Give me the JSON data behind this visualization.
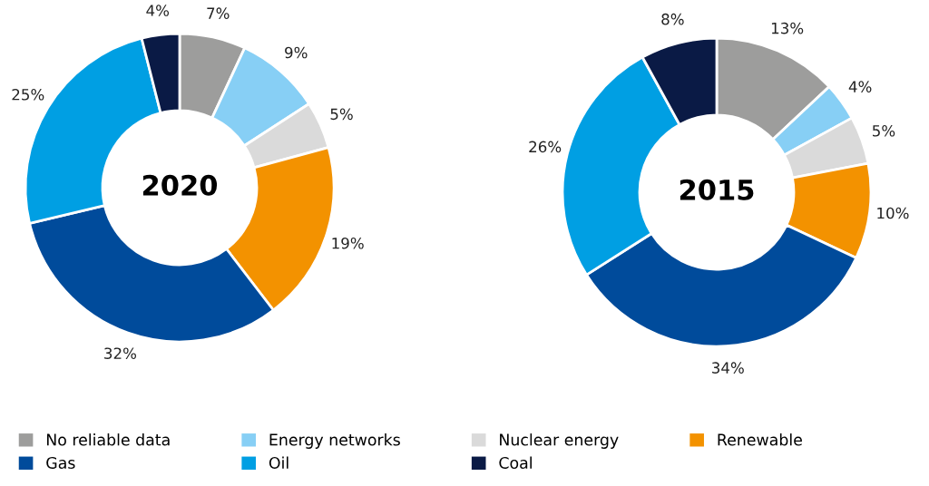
{
  "chart_data": [
    {
      "type": "donut",
      "title": "2020",
      "categories": [
        "No reliable data",
        "Energy networks",
        "Nuclear energy",
        "Renewable",
        "Gas",
        "Oil",
        "Coal"
      ],
      "values": [
        7,
        9,
        5,
        19,
        32,
        25,
        4
      ],
      "colors": [
        "#9d9d9c",
        "#87cff5",
        "#dadada",
        "#f39200",
        "#004b9b",
        "#009fe3",
        "#0a1a45"
      ],
      "value_labels": [
        "7%",
        "9%",
        "5%",
        "19%",
        "32%",
        "25%",
        "4%"
      ],
      "legend": "bottom"
    },
    {
      "type": "donut",
      "title": "2015",
      "categories": [
        null,
        null,
        null,
        null,
        null,
        null,
        null
      ],
      "values": [
        13,
        4,
        5,
        10,
        34,
        26,
        8
      ],
      "colors": [
        "#9d9d9c",
        "#87cff5",
        "#dadada",
        "#f39200",
        "#004b9b",
        "#009fe3",
        "#0a1a45"
      ],
      "value_labels": [
        "13%",
        "4%",
        "5%",
        "10%",
        "34%",
        "26%",
        "8%"
      ]
    }
  ]
}
